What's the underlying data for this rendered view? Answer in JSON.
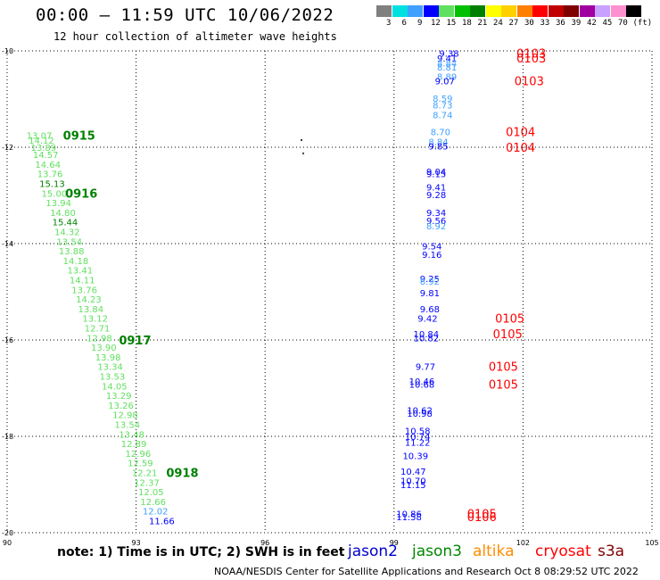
{
  "header": {
    "title": "00:00 – 11:59 UTC 10/06/2022",
    "subtitle": "12 hour collection of altimeter wave heights"
  },
  "legend": {
    "unit": "(ft)",
    "bins": [
      {
        "label": "3",
        "color": "#808080"
      },
      {
        "label": "6",
        "color": "#00e0e0"
      },
      {
        "label": "9",
        "color": "#40a0ff"
      },
      {
        "label": "12",
        "color": "#0000ff"
      },
      {
        "label": "15",
        "color": "#60e060"
      },
      {
        "label": "18",
        "color": "#00c000"
      },
      {
        "label": "21",
        "color": "#008000"
      },
      {
        "label": "24",
        "color": "#ffff00"
      },
      {
        "label": "27",
        "color": "#ffd000"
      },
      {
        "label": "30",
        "color": "#ff8000"
      },
      {
        "label": "33",
        "color": "#ff0000"
      },
      {
        "label": "36",
        "color": "#c00000"
      },
      {
        "label": "39",
        "color": "#800000"
      },
      {
        "label": "42",
        "color": "#a000a0"
      },
      {
        "label": "45",
        "color": "#c8a0ff"
      },
      {
        "label": "70",
        "color": "#ff90d0"
      },
      {
        "label": "",
        "color": "#000000"
      }
    ]
  },
  "footer": {
    "note": "note: 1) Time is in UTC; 2) SWH is in feet",
    "credit": "NOAA/NESDIS Center for Satellite Applications and Research   Oct  8 08:29:52 UTC 2022",
    "satellites": [
      {
        "name": "jason2",
        "color": "#0000cc"
      },
      {
        "name": "jason3",
        "color": "#008800"
      },
      {
        "name": "altika",
        "color": "#ff8c00"
      },
      {
        "name": "cryosat",
        "color": "#ff0000"
      },
      {
        "name": "s3a",
        "color": "#800000"
      }
    ]
  },
  "chart_data": {
    "type": "scatter",
    "xlim": [
      90,
      105
    ],
    "ylim": [
      -20,
      -10
    ],
    "grid": true,
    "x_ticks": [
      "90",
      "93",
      "96",
      "99",
      "102",
      "105"
    ],
    "y_ticks": [
      "-10",
      "-12",
      "-14",
      "-16",
      "-18",
      "-20"
    ],
    "track_west": {
      "points": [
        {
          "x": 90.45,
          "y": -11.75,
          "label": "13.07",
          "color": "#60e060"
        },
        {
          "x": 90.5,
          "y": -11.85,
          "label": "14.12",
          "color": "#60e060"
        },
        {
          "x": 90.55,
          "y": -12.0,
          "label": "13.89",
          "color": "#60e060"
        },
        {
          "x": 90.6,
          "y": -12.15,
          "label": "14.57",
          "color": "#60e060"
        },
        {
          "x": 90.65,
          "y": -12.35,
          "label": "14.64",
          "color": "#60e060"
        },
        {
          "x": 90.7,
          "y": -12.55,
          "label": "13.76",
          "color": "#60e060"
        },
        {
          "x": 90.75,
          "y": -12.75,
          "label": "15.13",
          "color": "#008000"
        },
        {
          "x": 90.8,
          "y": -12.95,
          "label": "15.00",
          "color": "#60e060"
        },
        {
          "x": 90.9,
          "y": -13.15,
          "label": "13.94",
          "color": "#60e060"
        },
        {
          "x": 91.0,
          "y": -13.35,
          "label": "14.80",
          "color": "#60e060"
        },
        {
          "x": 91.05,
          "y": -13.55,
          "label": "15.44",
          "color": "#008000"
        },
        {
          "x": 91.1,
          "y": -13.75,
          "label": "14.32",
          "color": "#60e060"
        },
        {
          "x": 91.15,
          "y": -13.95,
          "label": "13.54",
          "color": "#60e060"
        },
        {
          "x": 91.2,
          "y": -14.15,
          "label": "13.88",
          "color": "#60e060"
        },
        {
          "x": 91.3,
          "y": -14.35,
          "label": "14.18",
          "color": "#60e060"
        },
        {
          "x": 91.4,
          "y": -14.55,
          "label": "13.41",
          "color": "#60e060"
        },
        {
          "x": 91.45,
          "y": -14.75,
          "label": "14.11",
          "color": "#60e060"
        },
        {
          "x": 91.5,
          "y": -14.95,
          "label": "13.76",
          "color": "#60e060"
        },
        {
          "x": 91.6,
          "y": -15.15,
          "label": "14.23",
          "color": "#60e060"
        },
        {
          "x": 91.65,
          "y": -15.35,
          "label": "13.84",
          "color": "#60e060"
        },
        {
          "x": 91.75,
          "y": -15.55,
          "label": "13.12",
          "color": "#60e060"
        },
        {
          "x": 91.8,
          "y": -15.75,
          "label": "12.71",
          "color": "#60e060"
        },
        {
          "x": 91.85,
          "y": -15.95,
          "label": "12.98",
          "color": "#60e060"
        },
        {
          "x": 91.95,
          "y": -16.15,
          "label": "13.90",
          "color": "#60e060"
        },
        {
          "x": 92.05,
          "y": -16.35,
          "label": "13.98",
          "color": "#60e060"
        },
        {
          "x": 92.1,
          "y": -16.55,
          "label": "13.34",
          "color": "#60e060"
        },
        {
          "x": 92.15,
          "y": -16.75,
          "label": "13.53",
          "color": "#60e060"
        },
        {
          "x": 92.2,
          "y": -16.95,
          "label": "14.05",
          "color": "#60e060"
        },
        {
          "x": 92.3,
          "y": -17.15,
          "label": "13.29",
          "color": "#60e060"
        },
        {
          "x": 92.35,
          "y": -17.35,
          "label": "13.26",
          "color": "#60e060"
        },
        {
          "x": 92.45,
          "y": -17.55,
          "label": "12.98",
          "color": "#60e060"
        },
        {
          "x": 92.5,
          "y": -17.75,
          "label": "13.54",
          "color": "#60e060"
        },
        {
          "x": 92.6,
          "y": -17.95,
          "label": "13.48",
          "color": "#60e060"
        },
        {
          "x": 92.65,
          "y": -18.15,
          "label": "12.89",
          "color": "#60e060"
        },
        {
          "x": 92.75,
          "y": -18.35,
          "label": "12.96",
          "color": "#60e060"
        },
        {
          "x": 92.8,
          "y": -18.55,
          "label": "12.59",
          "color": "#60e060"
        },
        {
          "x": 92.9,
          "y": -18.75,
          "label": "12.21",
          "color": "#60e060"
        },
        {
          "x": 92.95,
          "y": -18.95,
          "label": "12.37",
          "color": "#60e060"
        },
        {
          "x": 93.05,
          "y": -19.15,
          "label": "12.05",
          "color": "#60e060"
        },
        {
          "x": 93.1,
          "y": -19.35,
          "label": "12.66",
          "color": "#60e060"
        },
        {
          "x": 93.15,
          "y": -19.55,
          "label": "12.02",
          "color": "#40a0ff"
        },
        {
          "x": 93.3,
          "y": -19.75,
          "label": "11.66",
          "color": "#0000ff"
        }
      ],
      "time_labels": [
        {
          "x": 91.3,
          "y": -11.75,
          "label": "0915",
          "color": "#008000"
        },
        {
          "x": 91.35,
          "y": -12.95,
          "label": "0916",
          "color": "#008000"
        },
        {
          "x": 92.6,
          "y": -16.0,
          "label": "0917",
          "color": "#008000"
        },
        {
          "x": 93.7,
          "y": -18.75,
          "label": "0918",
          "color": "#008000"
        }
      ]
    },
    "track_east": {
      "points": [
        {
          "x": 100.05,
          "y": -10.05,
          "label": "9.38",
          "color": "#0000ff"
        },
        {
          "x": 100.0,
          "y": -10.15,
          "label": "9.41",
          "color": "#0000ff"
        },
        {
          "x": 100.0,
          "y": -10.25,
          "label": "8.84",
          "color": "#40a0ff"
        },
        {
          "x": 100.0,
          "y": -10.33,
          "label": "8.81",
          "color": "#40a0ff"
        },
        {
          "x": 100.0,
          "y": -10.53,
          "label": "8.89",
          "color": "#40a0ff"
        },
        {
          "x": 99.95,
          "y": -10.62,
          "label": "9.07",
          "color": "#0000ff"
        },
        {
          "x": 99.9,
          "y": -10.98,
          "label": "8.59",
          "color": "#40a0ff"
        },
        {
          "x": 99.9,
          "y": -11.12,
          "label": "8.73",
          "color": "#40a0ff"
        },
        {
          "x": 99.9,
          "y": -11.32,
          "label": "8.74",
          "color": "#40a0ff"
        },
        {
          "x": 99.85,
          "y": -11.68,
          "label": "8.70",
          "color": "#40a0ff"
        },
        {
          "x": 99.8,
          "y": -11.88,
          "label": "8.84",
          "color": "#40a0ff"
        },
        {
          "x": 99.8,
          "y": -11.97,
          "label": "9.85",
          "color": "#0000ff"
        },
        {
          "x": 99.75,
          "y": -12.5,
          "label": "9.04",
          "color": "#0000ff"
        },
        {
          "x": 99.75,
          "y": -12.55,
          "label": "9.15",
          "color": "#0000ff"
        },
        {
          "x": 99.75,
          "y": -12.82,
          "label": "9.41",
          "color": "#0000ff"
        },
        {
          "x": 99.75,
          "y": -12.98,
          "label": "9.28",
          "color": "#0000ff"
        },
        {
          "x": 99.75,
          "y": -13.35,
          "label": "9.34",
          "color": "#0000ff"
        },
        {
          "x": 99.75,
          "y": -13.52,
          "label": "9.56",
          "color": "#0000ff"
        },
        {
          "x": 99.75,
          "y": -13.63,
          "label": "8.92",
          "color": "#40a0ff"
        },
        {
          "x": 99.65,
          "y": -14.05,
          "label": "9.54",
          "color": "#0000ff"
        },
        {
          "x": 99.65,
          "y": -14.22,
          "label": "9.16",
          "color": "#0000ff"
        },
        {
          "x": 99.6,
          "y": -14.72,
          "label": "9.25",
          "color": "#0000ff"
        },
        {
          "x": 99.6,
          "y": -14.78,
          "label": "8.92",
          "color": "#40a0ff"
        },
        {
          "x": 99.6,
          "y": -15.02,
          "label": "9.81",
          "color": "#0000ff"
        },
        {
          "x": 99.6,
          "y": -15.35,
          "label": "9.68",
          "color": "#0000ff"
        },
        {
          "x": 99.55,
          "y": -15.55,
          "label": "9.42",
          "color": "#0000ff"
        },
        {
          "x": 99.45,
          "y": -15.87,
          "label": "10.84",
          "color": "#0000ff"
        },
        {
          "x": 99.45,
          "y": -15.95,
          "label": "10.82",
          "color": "#0000ff"
        },
        {
          "x": 99.5,
          "y": -16.55,
          "label": "9.77",
          "color": "#0000ff"
        },
        {
          "x": 99.35,
          "y": -16.85,
          "label": "10.46",
          "color": "#0000ff"
        },
        {
          "x": 99.35,
          "y": -16.92,
          "label": "10.68",
          "color": "#0000ff"
        },
        {
          "x": 99.3,
          "y": -17.45,
          "label": "10.62",
          "color": "#0000ff"
        },
        {
          "x": 99.3,
          "y": -17.52,
          "label": "10.98",
          "color": "#0000ff"
        },
        {
          "x": 99.25,
          "y": -17.88,
          "label": "10.58",
          "color": "#0000ff"
        },
        {
          "x": 99.25,
          "y": -18.0,
          "label": "10.74",
          "color": "#0000ff"
        },
        {
          "x": 99.25,
          "y": -18.12,
          "label": "11.22",
          "color": "#0000ff"
        },
        {
          "x": 99.2,
          "y": -18.4,
          "label": "10.39",
          "color": "#0000ff"
        },
        {
          "x": 99.15,
          "y": -18.72,
          "label": "10.47",
          "color": "#0000ff"
        },
        {
          "x": 99.15,
          "y": -18.92,
          "label": "10.70",
          "color": "#0000ff"
        },
        {
          "x": 99.15,
          "y": -19.0,
          "label": "11.15",
          "color": "#0000ff"
        },
        {
          "x": 99.05,
          "y": -19.6,
          "label": "10.86",
          "color": "#0000ff"
        },
        {
          "x": 99.05,
          "y": -19.67,
          "label": "11.58",
          "color": "#0000ff"
        }
      ],
      "time_labels": [
        {
          "x": 101.85,
          "y": -10.05,
          "label": "0103",
          "color": "#ff0000"
        },
        {
          "x": 101.85,
          "y": -10.15,
          "label": "0103",
          "color": "#ff0000"
        },
        {
          "x": 101.8,
          "y": -10.62,
          "label": "0103",
          "color": "#ff0000"
        },
        {
          "x": 101.6,
          "y": -11.68,
          "label": "0104",
          "color": "#ff0000"
        },
        {
          "x": 101.6,
          "y": -12.0,
          "label": "0104",
          "color": "#ff0000"
        },
        {
          "x": 101.35,
          "y": -15.55,
          "label": "0105",
          "color": "#ff0000"
        },
        {
          "x": 101.3,
          "y": -15.87,
          "label": "0105",
          "color": "#ff0000"
        },
        {
          "x": 101.2,
          "y": -16.55,
          "label": "0105",
          "color": "#ff0000"
        },
        {
          "x": 101.2,
          "y": -16.92,
          "label": "0105",
          "color": "#ff0000"
        },
        {
          "x": 100.7,
          "y": -19.6,
          "label": "0105",
          "color": "#ff0000"
        },
        {
          "x": 100.7,
          "y": -19.67,
          "label": "0106",
          "color": "#ff0000"
        }
      ]
    }
  }
}
